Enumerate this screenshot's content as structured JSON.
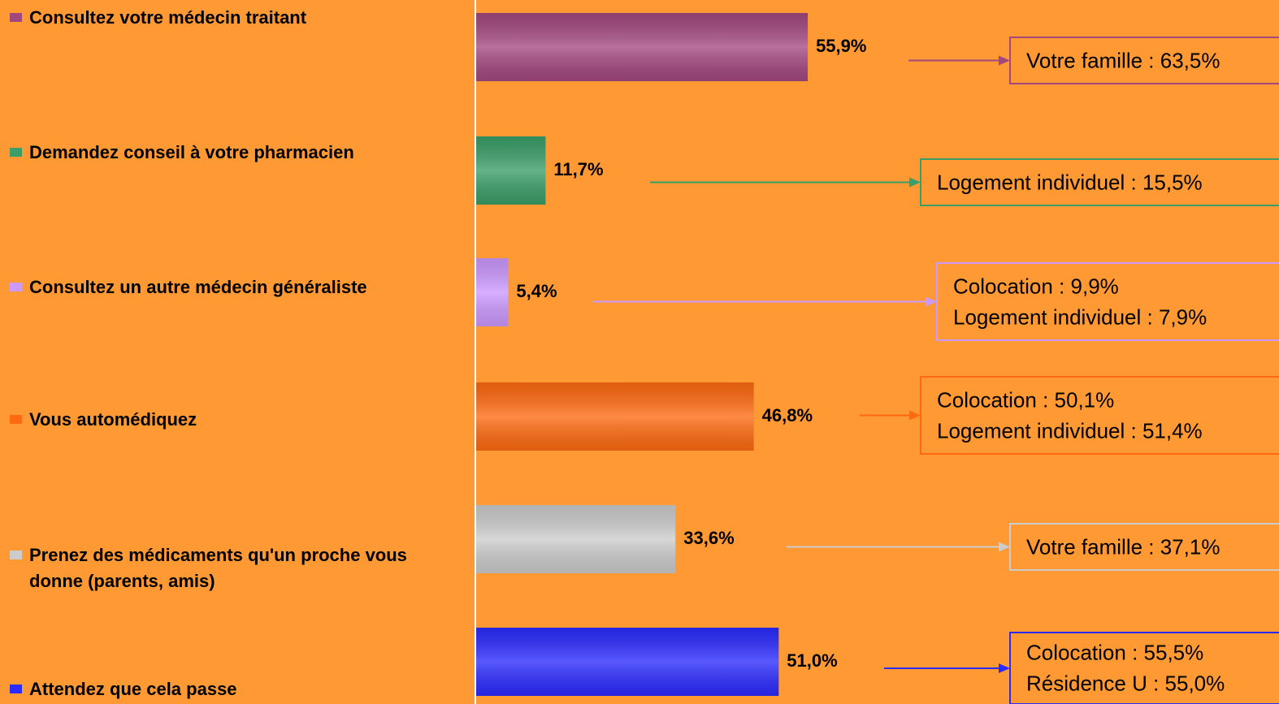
{
  "chart_data": {
    "type": "bar",
    "orientation": "horizontal",
    "categories": [
      "Consultez votre médecin traitant",
      "Demandez conseil à votre pharmacien",
      "Consultez un autre médecin généraliste",
      "Vous automédiquez",
      "Prenez des médicaments qu'un proche vous donne (parents, amis)",
      "Attendez que cela passe"
    ],
    "values": [
      55.9,
      11.7,
      5.4,
      46.8,
      33.6,
      51.0
    ],
    "value_labels": [
      "55,9%",
      "11,7%",
      "5,4%",
      "46,8%",
      "33,6%",
      "51,0%"
    ],
    "colors": [
      "#a3487f",
      "#3a9e68",
      "#cc99ff",
      "#ff6a10",
      "#cccccc",
      "#2b2bff"
    ],
    "annotations": [
      [
        "Votre famille : 63,5%"
      ],
      [
        "Logement individuel : 15,5%"
      ],
      [
        "Colocation : 9,9%",
        "Logement individuel : 7,9%"
      ],
      [
        "Colocation : 50,1%",
        "Logement individuel : 51,4%"
      ],
      [
        "Votre famille : 37,1%"
      ],
      [
        "Colocation : 55,5%",
        "Résidence U : 55,0%"
      ]
    ]
  }
}
